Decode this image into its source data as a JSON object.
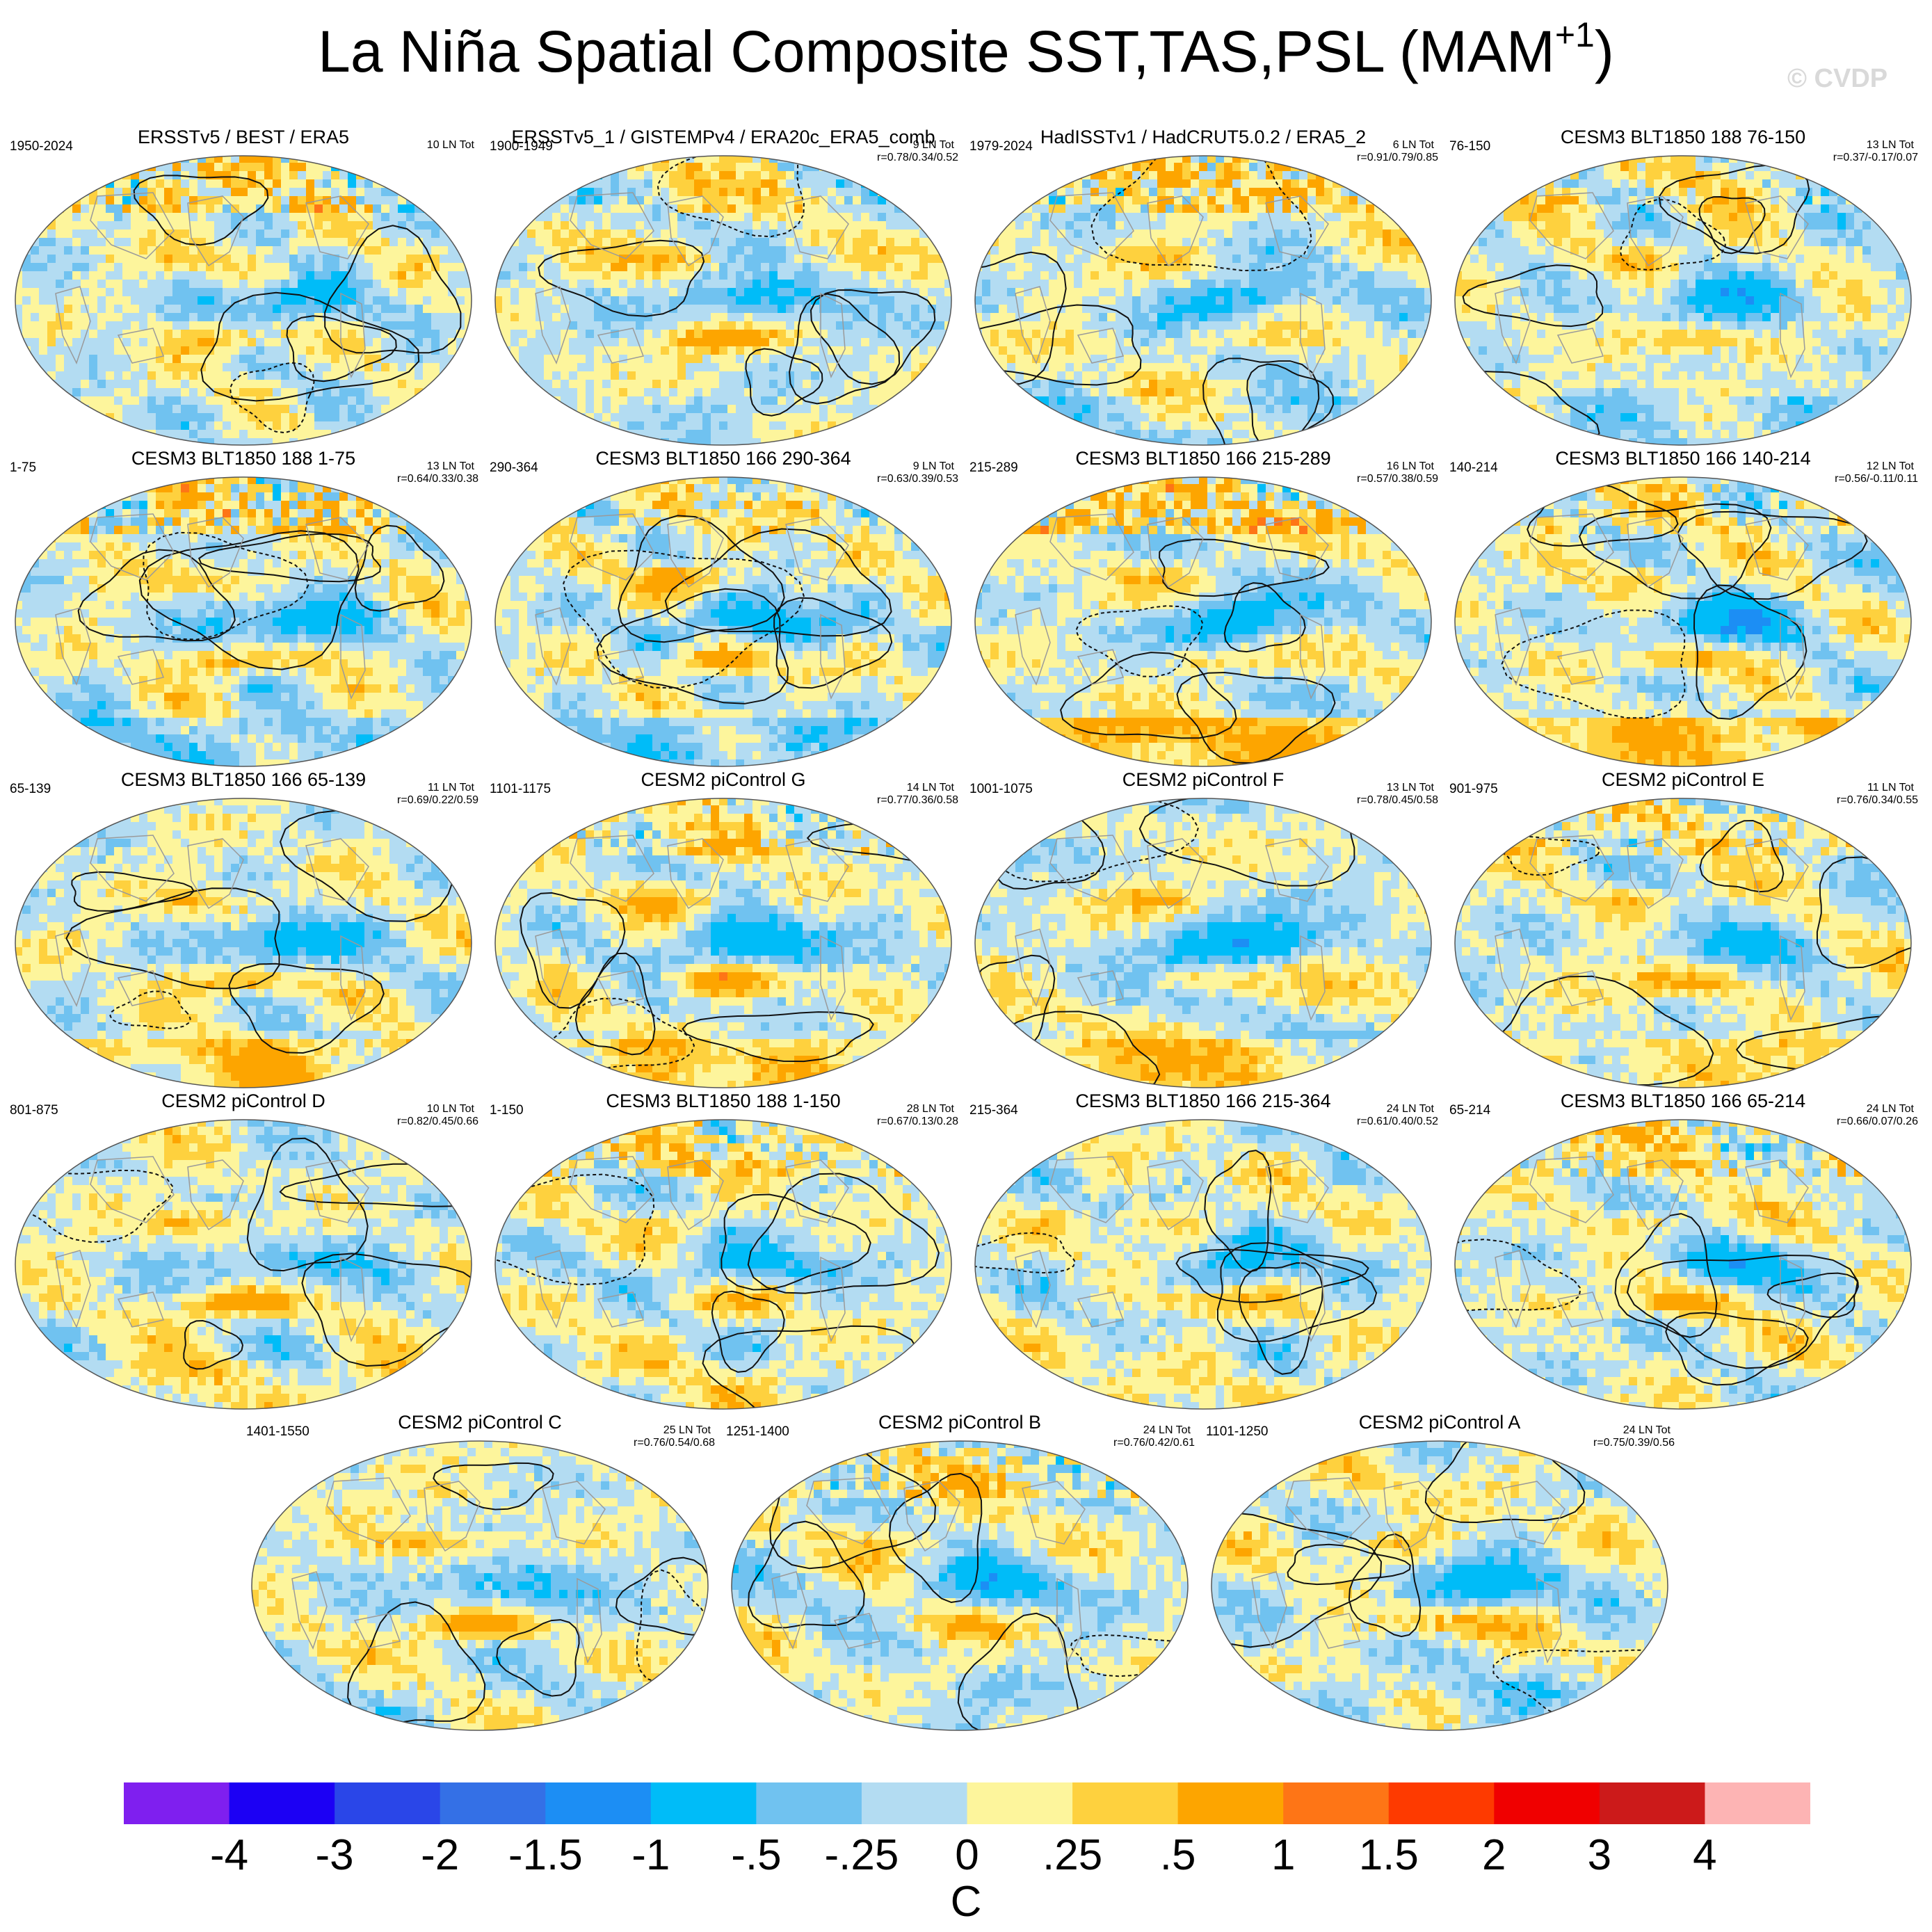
{
  "figure": {
    "title": "La Niña Spatial Composite SST,TAS,PSL (MAM",
    "title_superscript": "+1",
    "title_close": ")",
    "watermark": "© CVDP"
  },
  "chart_data": {
    "type": "heatmap",
    "title": "La Niña Spatial Composite SST,TAS,PSL (MAM+1)",
    "variables": [
      "SST",
      "TAS",
      "PSL"
    ],
    "season": "MAM+1",
    "projection": "global Robinson",
    "contours": "PSL anomaly (solid positive, dashed negative)",
    "panels": [
      {
        "title": "ERSSTv5 / BEST / ERA5",
        "period": "1950-2024",
        "count": "10 LN Tot",
        "stats": ""
      },
      {
        "title": "ERSSTv5_1 / GISTEMPv4 / ERA20c_ERA5_comb",
        "period": "1900-1949",
        "count": "9 LN Tot",
        "stats": "r=0.78/0.34/0.52"
      },
      {
        "title": "HadISSTv1 / HadCRUT5.0.2 / ERA5_2",
        "period": "1979-2024",
        "count": "6 LN Tot",
        "stats": "r=0.91/0.79/0.85"
      },
      {
        "title": "CESM3 BLT1850 188 76-150",
        "period": "76-150",
        "count": "13 LN Tot",
        "stats": "r=0.37/-0.17/0.07"
      },
      {
        "title": "CESM3 BLT1850 188 1-75",
        "period": "1-75",
        "count": "13 LN Tot",
        "stats": "r=0.64/0.33/0.38"
      },
      {
        "title": "CESM3 BLT1850 166 290-364",
        "period": "290-364",
        "count": "9 LN Tot",
        "stats": "r=0.63/0.39/0.53"
      },
      {
        "title": "CESM3 BLT1850 166 215-289",
        "period": "215-289",
        "count": "16 LN Tot",
        "stats": "r=0.57/0.38/0.59"
      },
      {
        "title": "CESM3 BLT1850 166 140-214",
        "period": "140-214",
        "count": "12 LN Tot",
        "stats": "r=0.56/-0.11/0.11"
      },
      {
        "title": "CESM3 BLT1850 166 65-139",
        "period": "65-139",
        "count": "11 LN Tot",
        "stats": "r=0.69/0.22/0.59"
      },
      {
        "title": "CESM2 piControl G",
        "period": "1101-1175",
        "count": "14 LN Tot",
        "stats": "r=0.77/0.36/0.58"
      },
      {
        "title": "CESM2 piControl F",
        "period": "1001-1075",
        "count": "13 LN Tot",
        "stats": "r=0.78/0.45/0.58"
      },
      {
        "title": "CESM2 piControl E",
        "period": "901-975",
        "count": "11 LN Tot",
        "stats": "r=0.76/0.34/0.55"
      },
      {
        "title": "CESM2 piControl D",
        "period": "801-875",
        "count": "10 LN Tot",
        "stats": "r=0.82/0.45/0.66"
      },
      {
        "title": "CESM3 BLT1850 188 1-150",
        "period": "1-150",
        "count": "28 LN Tot",
        "stats": "r=0.67/0.13/0.28"
      },
      {
        "title": "CESM3 BLT1850 166 215-364",
        "period": "215-364",
        "count": "24 LN Tot",
        "stats": "r=0.61/0.40/0.52"
      },
      {
        "title": "CESM3 BLT1850 166 65-214",
        "period": "65-214",
        "count": "24 LN Tot",
        "stats": "r=0.66/0.07/0.26"
      },
      {
        "title": "CESM2 piControl C",
        "period": "1401-1550",
        "count": "25 LN Tot",
        "stats": "r=0.76/0.54/0.68"
      },
      {
        "title": "CESM2 piControl B",
        "period": "1251-1400",
        "count": "24 LN Tot",
        "stats": "r=0.76/0.42/0.61"
      },
      {
        "title": "CESM2 piControl A",
        "period": "1101-1250",
        "count": "24 LN Tot",
        "stats": "r=0.75/0.39/0.56"
      }
    ],
    "colorbar": {
      "label": "C",
      "levels": [
        "-4",
        "-3",
        "-2",
        "-1.5",
        "-1",
        "-.5",
        "-.25",
        "0",
        ".25",
        ".5",
        "1",
        "1.5",
        "2",
        "3",
        "4"
      ],
      "colors": [
        "#7f1fef",
        "#1c00f4",
        "#2a46e8",
        "#3470e6",
        "#1c8ef4",
        "#00bcf8",
        "#70c2f0",
        "#b3dcf2",
        "#fdf59c",
        "#fed13e",
        "#fda500",
        "#fe7516",
        "#fe3a00",
        "#f00000",
        "#cc1a1a",
        "#fdb4b4"
      ]
    }
  }
}
